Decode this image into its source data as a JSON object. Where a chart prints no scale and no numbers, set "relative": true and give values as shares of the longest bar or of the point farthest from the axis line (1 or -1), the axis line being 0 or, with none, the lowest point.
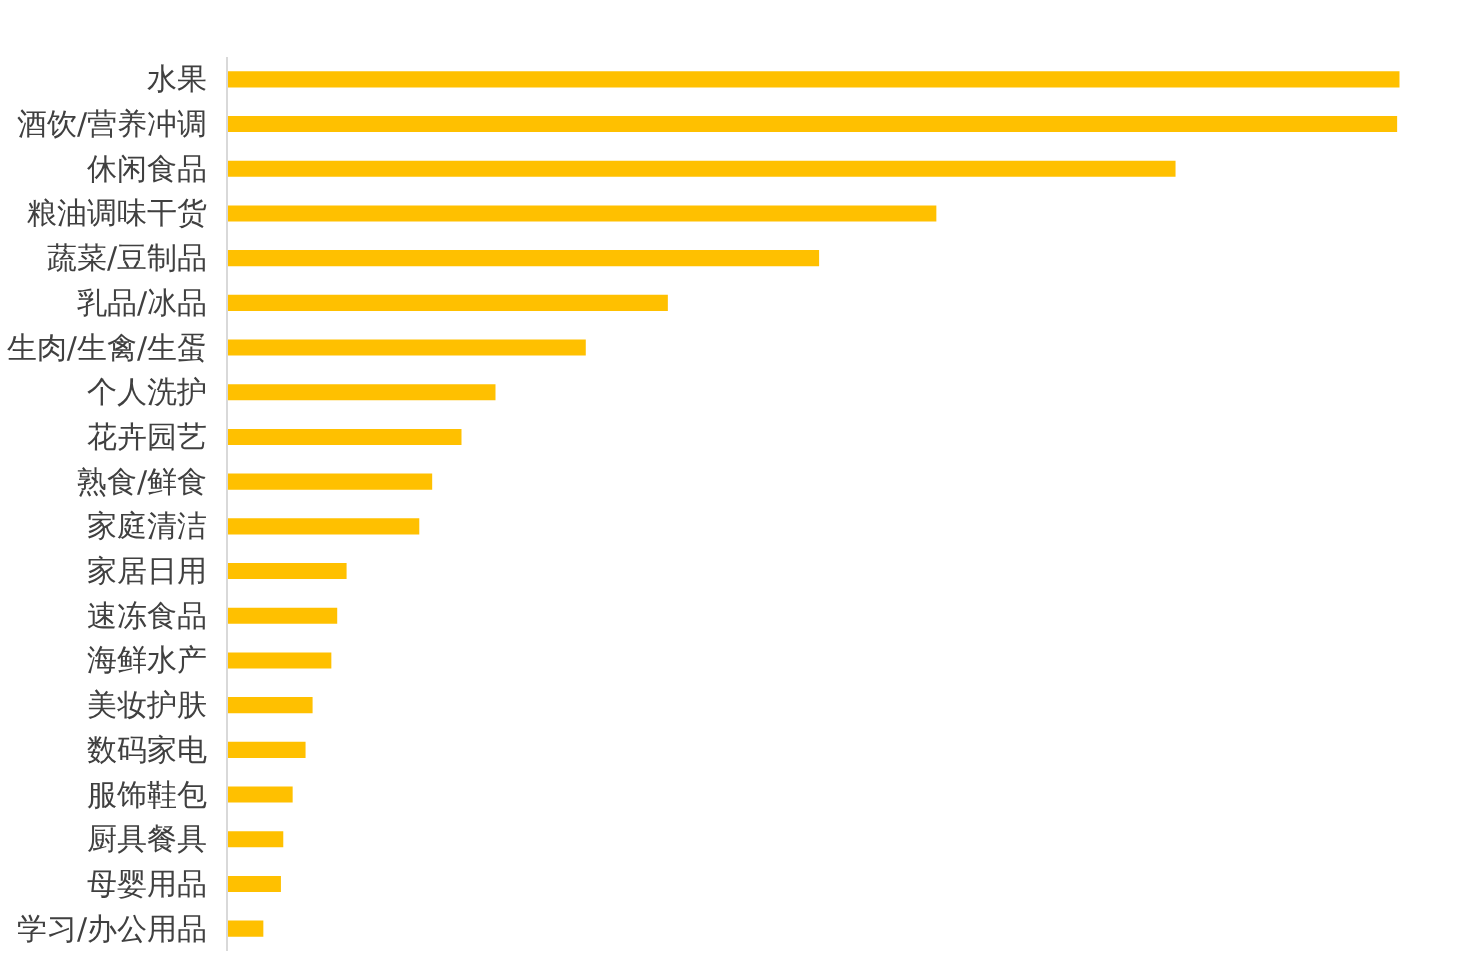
{
  "chart_data": {
    "type": "bar",
    "orientation": "horizontal",
    "relative": true,
    "color": "#ffc000",
    "categories": [
      "水果",
      "酒饮/营养冲调",
      "休闲食品",
      "粮油调味干货",
      "蔬菜/豆制品",
      "乳品/冰品",
      "生肉/生禽/生蛋",
      "个人洗护",
      "花卉园艺",
      "熟食/鲜食",
      "家庭清洁",
      "家居日用",
      "速冻食品",
      "海鲜水产",
      "美妆护肤",
      "数码家电",
      "服饰鞋包",
      "厨具餐具",
      "母婴用品",
      "学习/办公用品"
    ],
    "values": [
      1,
      0.998,
      0.809,
      0.605,
      0.505,
      0.376,
      0.306,
      0.229,
      0.2,
      0.175,
      0.164,
      0.102,
      0.094,
      0.089,
      0.073,
      0.067,
      0.056,
      0.048,
      0.046,
      0.031
    ]
  }
}
